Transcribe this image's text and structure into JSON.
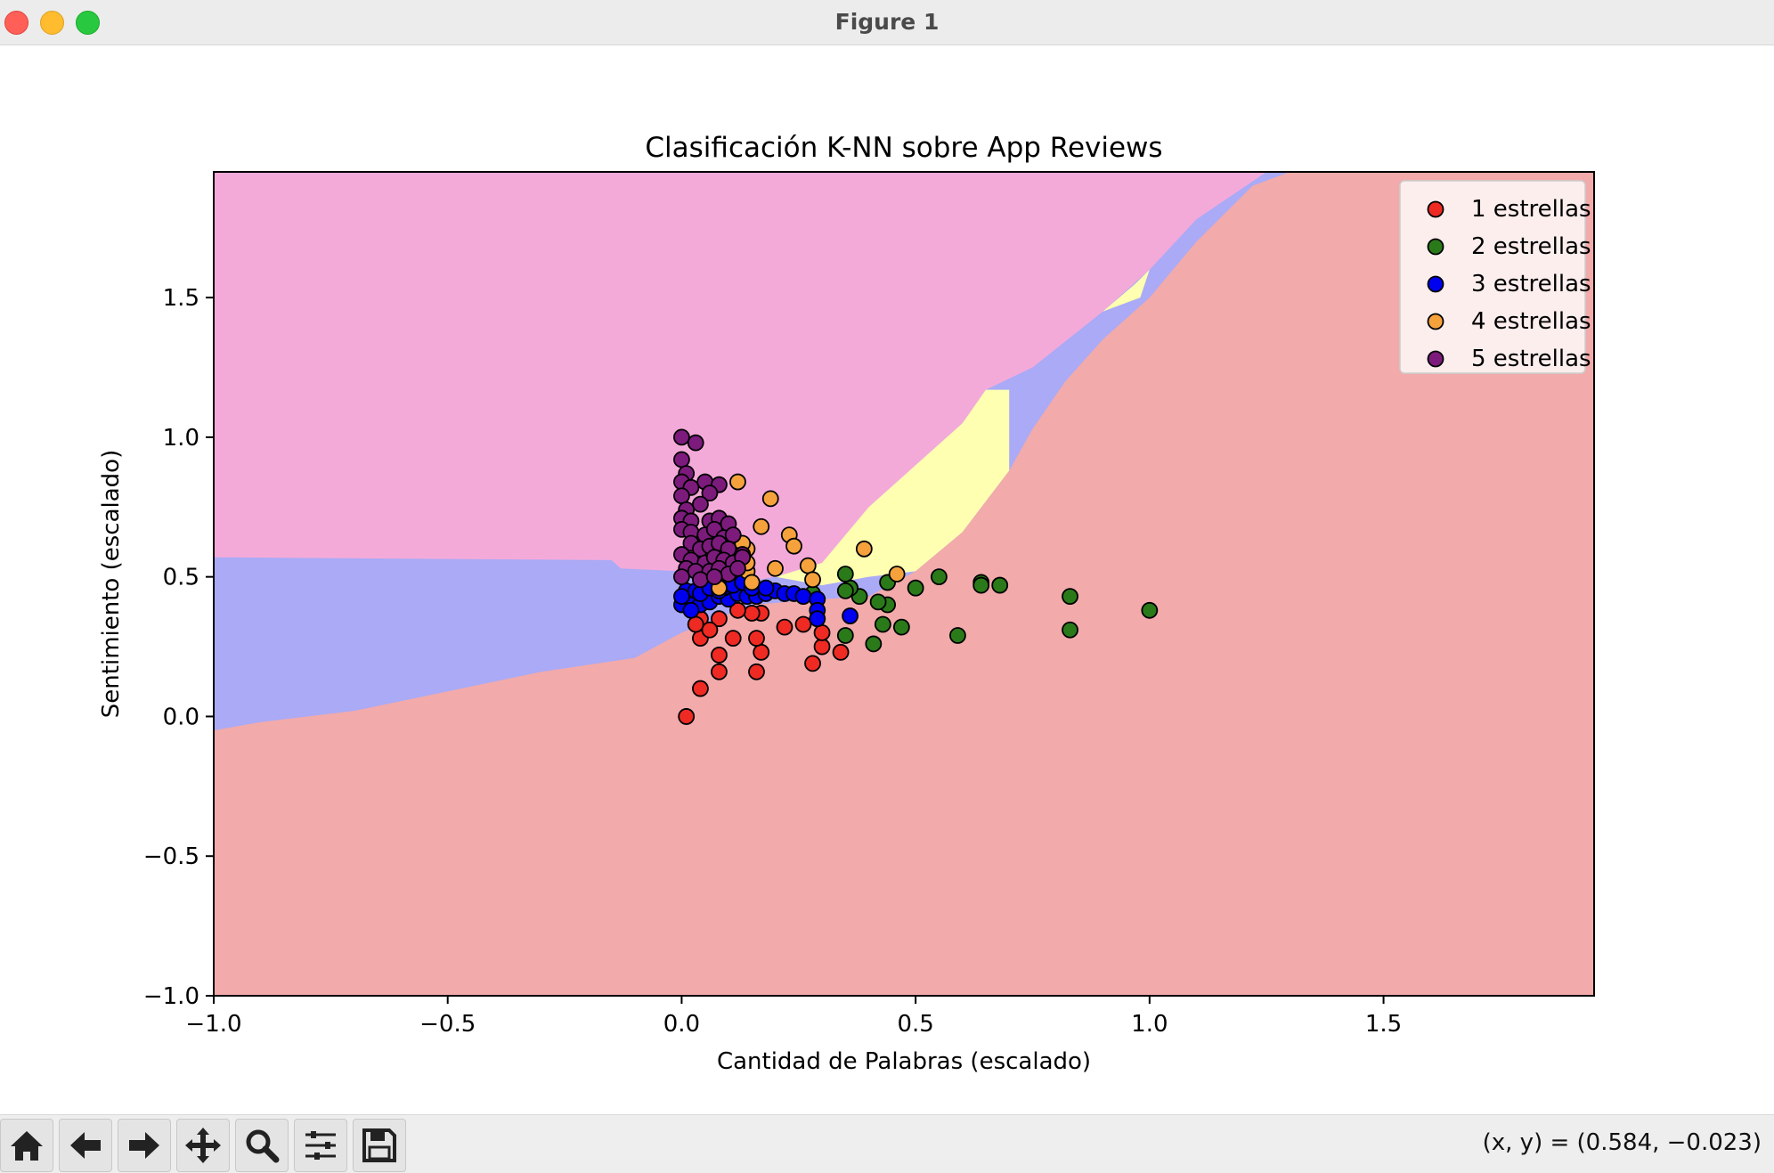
{
  "window": {
    "title": "Figure 1"
  },
  "toolbar": {
    "buttons": [
      {
        "name": "home-button",
        "icon": "home-icon"
      },
      {
        "name": "back-button",
        "icon": "arrow-left-icon"
      },
      {
        "name": "forward-button",
        "icon": "arrow-right-icon"
      },
      {
        "name": "pan-button",
        "icon": "move-icon"
      },
      {
        "name": "zoom-button",
        "icon": "magnifier-icon"
      },
      {
        "name": "configure-subplots-button",
        "icon": "sliders-icon"
      },
      {
        "name": "save-button",
        "icon": "floppy-disk-icon"
      }
    ],
    "coords_text": "(x, y) = (0.584, −0.023)"
  },
  "chart_data": {
    "type": "scatter",
    "title": "Clasificación K-NN sobre App Reviews",
    "xlabel": "Cantidad de Palabras (escalado)",
    "ylabel": "Sentimiento (escalado)",
    "xlim": [
      -1.0,
      1.95
    ],
    "ylim": [
      -1.0,
      1.95
    ],
    "xticks": [
      -1.0,
      -0.5,
      0.0,
      0.5,
      1.0,
      1.5
    ],
    "yticks": [
      -1.0,
      -0.5,
      0.0,
      0.5,
      1.0,
      1.5
    ],
    "xtick_labels": [
      "−1.0",
      "−0.5",
      "0.0",
      "0.5",
      "1.0",
      "1.5"
    ],
    "ytick_labels": [
      "−1.0",
      "−0.5",
      "0.0",
      "0.5",
      "1.0",
      "1.5"
    ],
    "grid": false,
    "legend_position": "upper right",
    "background_regions": [
      {
        "class": "1 estrellas",
        "color": "#f2aaaa"
      },
      {
        "class": "3 estrellas",
        "color": "#aaaaf6"
      },
      {
        "class": "4 estrellas",
        "color": "#feffb0"
      },
      {
        "class": "5 estrellas",
        "color": "#f4aad9"
      }
    ],
    "region_boundaries": {
      "red_upper": [
        [
          -1.0,
          -0.05
        ],
        [
          -0.9,
          -0.02
        ],
        [
          -0.7,
          0.02
        ],
        [
          -0.5,
          0.09
        ],
        [
          -0.3,
          0.16
        ],
        [
          -0.1,
          0.21
        ],
        [
          0.0,
          0.3
        ],
        [
          0.15,
          0.4
        ],
        [
          0.3,
          0.42
        ],
        [
          0.4,
          0.43
        ],
        [
          0.5,
          0.52
        ],
        [
          0.6,
          0.66
        ],
        [
          0.7,
          0.88
        ],
        [
          0.75,
          1.03
        ],
        [
          0.82,
          1.2
        ],
        [
          0.9,
          1.35
        ],
        [
          1.0,
          1.5
        ],
        [
          1.1,
          1.7
        ],
        [
          1.22,
          1.9
        ],
        [
          1.3,
          1.95
        ]
      ],
      "pink_lower": [
        [
          -1.0,
          0.57
        ],
        [
          -0.15,
          0.56
        ],
        [
          -0.13,
          0.53
        ],
        [
          0.0,
          0.52
        ],
        [
          0.1,
          0.47
        ],
        [
          0.2,
          0.5
        ],
        [
          0.3,
          0.55
        ],
        [
          0.35,
          0.65
        ],
        [
          0.4,
          0.75
        ],
        [
          0.5,
          0.9
        ],
        [
          0.6,
          1.05
        ],
        [
          0.65,
          1.17
        ],
        [
          0.75,
          1.25
        ],
        [
          0.9,
          1.45
        ],
        [
          1.0,
          1.6
        ],
        [
          1.1,
          1.78
        ],
        [
          1.25,
          1.95
        ]
      ]
    },
    "series": [
      {
        "name": "1 estrellas",
        "color": "#ee2a23",
        "points": [
          [
            0.01,
            0.0
          ],
          [
            0.04,
            0.1
          ],
          [
            0.08,
            0.16
          ],
          [
            0.16,
            0.16
          ],
          [
            0.04,
            0.28
          ],
          [
            0.08,
            0.22
          ],
          [
            0.11,
            0.28
          ],
          [
            0.17,
            0.23
          ],
          [
            0.28,
            0.19
          ],
          [
            0.3,
            0.25
          ],
          [
            0.34,
            0.23
          ],
          [
            0.3,
            0.3
          ],
          [
            0.22,
            0.32
          ],
          [
            0.26,
            0.33
          ],
          [
            0.04,
            0.35
          ],
          [
            0.08,
            0.35
          ],
          [
            0.16,
            0.28
          ],
          [
            0.06,
            0.31
          ],
          [
            0.17,
            0.37
          ],
          [
            0.15,
            0.37
          ],
          [
            0.03,
            0.33
          ],
          [
            0.12,
            0.38
          ]
        ]
      },
      {
        "name": "2 estrellas",
        "color": "#2a7a1a",
        "points": [
          [
            0.35,
            0.29
          ],
          [
            0.41,
            0.26
          ],
          [
            0.43,
            0.33
          ],
          [
            0.47,
            0.32
          ],
          [
            0.59,
            0.29
          ],
          [
            0.83,
            0.31
          ],
          [
            1.0,
            0.38
          ],
          [
            0.83,
            0.43
          ],
          [
            0.68,
            0.47
          ],
          [
            0.64,
            0.48
          ],
          [
            0.64,
            0.47
          ],
          [
            0.55,
            0.5
          ],
          [
            0.5,
            0.46
          ],
          [
            0.44,
            0.48
          ],
          [
            0.44,
            0.4
          ],
          [
            0.42,
            0.41
          ],
          [
            0.38,
            0.43
          ],
          [
            0.36,
            0.46
          ],
          [
            0.35,
            0.51
          ],
          [
            0.28,
            0.44
          ],
          [
            0.35,
            0.45
          ]
        ]
      },
      {
        "name": "3 estrellas",
        "color": "#0000f0",
        "points": [
          [
            0.0,
            0.4
          ],
          [
            0.02,
            0.42
          ],
          [
            0.04,
            0.4
          ],
          [
            0.06,
            0.41
          ],
          [
            0.08,
            0.43
          ],
          [
            0.1,
            0.42
          ],
          [
            0.12,
            0.44
          ],
          [
            0.14,
            0.43
          ],
          [
            0.16,
            0.43
          ],
          [
            0.18,
            0.44
          ],
          [
            0.2,
            0.45
          ],
          [
            0.22,
            0.44
          ],
          [
            0.24,
            0.44
          ],
          [
            0.26,
            0.43
          ],
          [
            0.29,
            0.42
          ],
          [
            0.29,
            0.38
          ],
          [
            0.29,
            0.35
          ],
          [
            0.36,
            0.36
          ],
          [
            0.01,
            0.45
          ],
          [
            0.03,
            0.45
          ],
          [
            0.05,
            0.47
          ],
          [
            0.07,
            0.48
          ],
          [
            0.09,
            0.46
          ],
          [
            0.11,
            0.47
          ],
          [
            0.13,
            0.48
          ],
          [
            0.15,
            0.46
          ],
          [
            0.18,
            0.46
          ],
          [
            0.0,
            0.43
          ],
          [
            0.02,
            0.38
          ],
          [
            0.04,
            0.44
          ],
          [
            0.06,
            0.46
          ],
          [
            0.08,
            0.45
          ]
        ]
      },
      {
        "name": "4 estrellas",
        "color": "#f5a23c",
        "points": [
          [
            0.12,
            0.84
          ],
          [
            0.19,
            0.78
          ],
          [
            0.17,
            0.68
          ],
          [
            0.23,
            0.65
          ],
          [
            0.24,
            0.61
          ],
          [
            0.39,
            0.6
          ],
          [
            0.27,
            0.54
          ],
          [
            0.2,
            0.53
          ],
          [
            0.14,
            0.52
          ],
          [
            0.46,
            0.51
          ],
          [
            0.28,
            0.49
          ],
          [
            0.08,
            0.46
          ],
          [
            0.14,
            0.6
          ],
          [
            0.13,
            0.62
          ],
          [
            0.1,
            0.64
          ],
          [
            0.14,
            0.55
          ],
          [
            0.15,
            0.48
          ],
          [
            0.11,
            0.58
          ]
        ]
      },
      {
        "name": "5 estrellas",
        "color": "#7d1b7d",
        "points": [
          [
            0.0,
            1.0
          ],
          [
            0.03,
            0.98
          ],
          [
            0.0,
            0.92
          ],
          [
            0.01,
            0.87
          ],
          [
            0.0,
            0.84
          ],
          [
            0.02,
            0.82
          ],
          [
            0.05,
            0.84
          ],
          [
            0.08,
            0.83
          ],
          [
            0.06,
            0.8
          ],
          [
            0.0,
            0.79
          ],
          [
            0.04,
            0.76
          ],
          [
            0.01,
            0.74
          ],
          [
            0.0,
            0.71
          ],
          [
            0.02,
            0.7
          ],
          [
            0.06,
            0.7
          ],
          [
            0.08,
            0.71
          ],
          [
            0.1,
            0.69
          ],
          [
            0.0,
            0.67
          ],
          [
            0.02,
            0.66
          ],
          [
            0.05,
            0.65
          ],
          [
            0.07,
            0.67
          ],
          [
            0.09,
            0.64
          ],
          [
            0.11,
            0.65
          ],
          [
            0.02,
            0.62
          ],
          [
            0.04,
            0.6
          ],
          [
            0.06,
            0.61
          ],
          [
            0.08,
            0.62
          ],
          [
            0.1,
            0.6
          ],
          [
            0.13,
            0.58
          ],
          [
            0.0,
            0.58
          ],
          [
            0.02,
            0.56
          ],
          [
            0.05,
            0.55
          ],
          [
            0.07,
            0.57
          ],
          [
            0.09,
            0.56
          ],
          [
            0.11,
            0.55
          ],
          [
            0.13,
            0.57
          ],
          [
            0.01,
            0.53
          ],
          [
            0.03,
            0.52
          ],
          [
            0.06,
            0.52
          ],
          [
            0.08,
            0.53
          ],
          [
            0.1,
            0.51
          ],
          [
            0.12,
            0.53
          ],
          [
            0.0,
            0.5
          ],
          [
            0.04,
            0.49
          ],
          [
            0.07,
            0.5
          ]
        ]
      }
    ]
  }
}
